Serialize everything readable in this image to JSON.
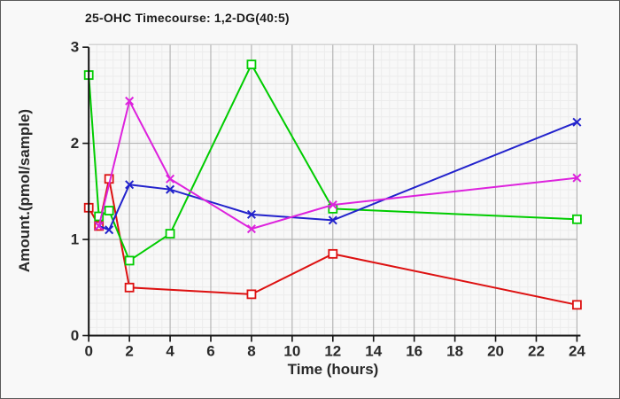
{
  "window": {
    "background": "#f8f8f8",
    "border_color": "#5a5a5a"
  },
  "chart_data": {
    "type": "line",
    "title": "25-OHC Timecourse: 1,2-DG(40:5)",
    "xlabel": "Time (hours)",
    "ylabel": "Amount.(pmol/sample)",
    "xlim": [
      0,
      24
    ],
    "ylim": [
      0,
      3
    ],
    "x_ticks": [
      0,
      2,
      4,
      6,
      8,
      10,
      12,
      14,
      16,
      18,
      20,
      22,
      24
    ],
    "x_tick_labels": [
      "0",
      "2",
      "4",
      "6",
      "8",
      "10",
      "12",
      "14",
      "16",
      "18",
      "20",
      "22",
      "24"
    ],
    "y_ticks": [
      0,
      1,
      2,
      3
    ],
    "y_tick_labels": [
      "0",
      "1",
      "2",
      "3"
    ],
    "grid": "fine minor grid plus gray major gridlines at every labeled tick",
    "legend": "none",
    "colors": {
      "axis": "#111111",
      "major_grid": "#ababab",
      "top_border_grid": "#c8c8c8",
      "minor_grid": "#ececec",
      "text": "#2a2a2a"
    },
    "series": [
      {
        "name": "series-red",
        "color": "#dd1111",
        "marker": "open-square",
        "x": [
          0,
          0.5,
          1,
          2,
          8,
          12,
          24
        ],
        "y": [
          1.33,
          1.14,
          1.63,
          0.5,
          0.43,
          0.85,
          0.32
        ]
      },
      {
        "name": "series-green",
        "color": "#00cc00",
        "marker": "open-square",
        "x": [
          0,
          0.5,
          1,
          2,
          4,
          8,
          12,
          24
        ],
        "y": [
          2.71,
          1.24,
          1.3,
          0.78,
          1.06,
          2.82,
          1.32,
          1.21
        ]
      },
      {
        "name": "series-blue",
        "color": "#2222cc",
        "marker": "x-cross",
        "x": [
          0.5,
          1,
          2,
          4,
          8,
          12,
          24
        ],
        "y": [
          1.14,
          1.1,
          1.57,
          1.52,
          1.26,
          1.2,
          2.22
        ]
      },
      {
        "name": "series-magenta",
        "color": "#dd22dd",
        "marker": "x-cross",
        "x": [
          0.5,
          2,
          4,
          8,
          12,
          24
        ],
        "y": [
          1.14,
          2.44,
          1.63,
          1.11,
          1.36,
          1.64
        ]
      }
    ]
  }
}
